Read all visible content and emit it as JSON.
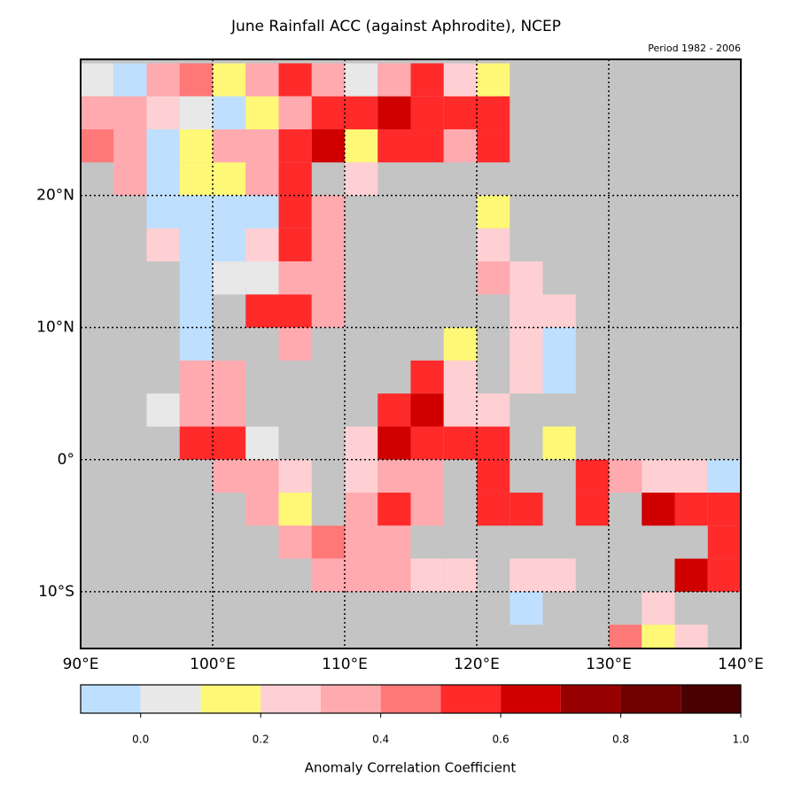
{
  "chart_data": {
    "type": "heatmap",
    "title": "June Rainfall ACC (against Aphrodite), NCEP",
    "subtitle": "Period 1982 - 2006",
    "x": [
      90,
      92.5,
      95,
      97.5,
      100,
      102.5,
      105,
      107.5,
      110,
      112.5,
      115,
      117.5,
      120,
      122.5,
      125,
      127.5,
      130,
      132.5,
      135,
      137.5
    ],
    "y": [
      30,
      27.5,
      25,
      22.5,
      20,
      17.5,
      15,
      12.5,
      10,
      7.5,
      5,
      2.5,
      0,
      -2.5,
      -5,
      -7.5,
      -10,
      -12.5
    ],
    "values": [
      [
        0.05,
        -0.05,
        0.35,
        0.45,
        0.15,
        0.35,
        0.55,
        0.35,
        0.05,
        0.35,
        0.55,
        0.25,
        0.15,
        null,
        null,
        null,
        null,
        null,
        null,
        null
      ],
      [
        0.35,
        0.35,
        0.25,
        0.05,
        -0.05,
        0.15,
        0.35,
        0.55,
        0.55,
        0.65,
        0.55,
        0.55,
        0.55,
        null,
        null,
        null,
        null,
        null,
        null,
        null
      ],
      [
        0.45,
        0.35,
        -0.05,
        0.15,
        0.35,
        0.35,
        0.55,
        0.65,
        0.15,
        0.55,
        0.55,
        0.35,
        0.55,
        null,
        null,
        null,
        null,
        null,
        null,
        null
      ],
      [
        null,
        0.35,
        -0.05,
        0.15,
        0.15,
        0.35,
        0.55,
        null,
        0.25,
        null,
        null,
        null,
        null,
        null,
        null,
        null,
        null,
        null,
        null,
        null
      ],
      [
        null,
        null,
        -0.05,
        -0.05,
        -0.05,
        -0.05,
        0.55,
        0.35,
        null,
        null,
        null,
        null,
        0.15,
        null,
        null,
        null,
        null,
        null,
        null,
        null
      ],
      [
        null,
        null,
        0.25,
        -0.05,
        -0.05,
        0.25,
        0.55,
        0.35,
        null,
        null,
        null,
        null,
        0.25,
        null,
        null,
        null,
        null,
        null,
        null,
        null
      ],
      [
        null,
        null,
        null,
        -0.05,
        0.05,
        0.05,
        0.35,
        0.35,
        null,
        null,
        null,
        null,
        0.35,
        0.25,
        null,
        null,
        null,
        null,
        null,
        null
      ],
      [
        null,
        null,
        null,
        -0.05,
        null,
        0.55,
        0.55,
        0.35,
        null,
        null,
        null,
        null,
        null,
        0.25,
        0.25,
        null,
        null,
        null,
        null,
        null
      ],
      [
        null,
        null,
        null,
        -0.05,
        null,
        null,
        0.35,
        null,
        null,
        null,
        null,
        0.15,
        null,
        0.25,
        -0.05,
        null,
        null,
        null,
        null,
        null
      ],
      [
        null,
        null,
        null,
        0.35,
        0.35,
        null,
        null,
        null,
        null,
        null,
        0.55,
        0.25,
        null,
        0.25,
        -0.05,
        null,
        null,
        null,
        null,
        null
      ],
      [
        null,
        null,
        0.05,
        0.35,
        0.35,
        null,
        null,
        null,
        null,
        0.55,
        0.65,
        0.25,
        0.25,
        null,
        null,
        null,
        null,
        null,
        null,
        null
      ],
      [
        null,
        null,
        null,
        0.55,
        0.55,
        0.05,
        null,
        null,
        0.25,
        0.65,
        0.55,
        0.55,
        0.55,
        null,
        0.15,
        null,
        null,
        null,
        null,
        null
      ],
      [
        null,
        null,
        null,
        null,
        0.35,
        0.35,
        0.25,
        null,
        0.25,
        0.35,
        0.35,
        null,
        0.55,
        null,
        null,
        0.55,
        0.35,
        0.25,
        0.25,
        -0.05
      ],
      [
        null,
        null,
        null,
        null,
        null,
        0.35,
        0.15,
        null,
        0.35,
        0.55,
        0.35,
        null,
        0.55,
        0.55,
        null,
        0.55,
        null,
        0.65,
        0.55,
        0.55
      ],
      [
        null,
        null,
        null,
        null,
        null,
        null,
        0.35,
        0.45,
        0.35,
        0.35,
        null,
        null,
        null,
        null,
        null,
        null,
        null,
        null,
        null,
        0.55
      ],
      [
        null,
        null,
        null,
        null,
        null,
        null,
        null,
        0.35,
        0.35,
        0.35,
        0.25,
        0.25,
        null,
        0.25,
        0.25,
        null,
        null,
        null,
        0.65,
        0.55
      ],
      [
        null,
        null,
        null,
        null,
        null,
        null,
        null,
        null,
        null,
        null,
        null,
        null,
        null,
        -0.05,
        null,
        null,
        null,
        0.25,
        null,
        null
      ],
      [
        null,
        null,
        null,
        null,
        null,
        null,
        null,
        null,
        null,
        null,
        null,
        null,
        null,
        null,
        null,
        null,
        0.45,
        0.15,
        0.25,
        null
      ]
    ],
    "xlim": [
      90,
      140
    ],
    "ylim": [
      -14.3,
      30.3
    ],
    "xticks": [
      {
        "value": 90,
        "label": "90°E"
      },
      {
        "value": 100,
        "label": "100°E"
      },
      {
        "value": 110,
        "label": "110°E"
      },
      {
        "value": 120,
        "label": "120°E"
      },
      {
        "value": 130,
        "label": "130°E"
      },
      {
        "value": 140,
        "label": "140°E"
      }
    ],
    "yticks": [
      {
        "value": -10,
        "label": "10°S"
      },
      {
        "value": 0,
        "label": "0°"
      },
      {
        "value": 10,
        "label": "10°N"
      },
      {
        "value": 20,
        "label": "20°N"
      }
    ],
    "grid": true,
    "background": "#c4c4c4",
    "colorbar": {
      "label": "Anomaly Correlation Coefficient",
      "bounds": [
        -0.1,
        0,
        0.1,
        0.2,
        0.3,
        0.4,
        0.5,
        0.6,
        0.7,
        0.8,
        0.9,
        1.0
      ],
      "colors": [
        "#bfdfff",
        "#e8e8e8",
        "#fff876",
        "#ffd0d3",
        "#ffaaaf",
        "#ff7878",
        "#ff2a2a",
        "#d00000",
        "#960000",
        "#700000",
        "#4a0000"
      ],
      "ticks": [
        {
          "value": 0,
          "label": "0.0"
        },
        0.2,
        0.4,
        0.6,
        0.8,
        {
          "value": 1,
          "label": "1.0"
        }
      ]
    }
  }
}
